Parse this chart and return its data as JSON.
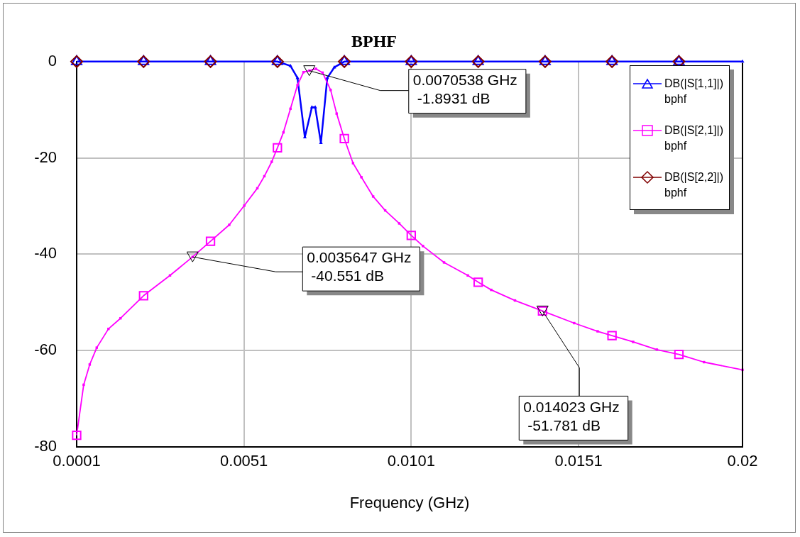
{
  "chart_data": {
    "type": "line",
    "title": "BPHF",
    "xlabel": "Frequency (GHz)",
    "xlim": [
      0.0001,
      0.02
    ],
    "xticks": [
      0.0001,
      0.0051,
      0.0101,
      0.0151,
      0.02
    ],
    "ylim": [
      -80,
      0
    ],
    "yticks": [
      -80,
      -60,
      -40,
      -20,
      0
    ],
    "grid": true,
    "legend": "top right",
    "series": [
      {
        "name": "DB(|S[2,2]|)\nbphf",
        "type": "scatter",
        "color": "#800000",
        "marker": "diamond",
        "x": [
          0.0001,
          0.0021,
          0.0041,
          0.0061,
          0.0081,
          0.0101,
          0.0121,
          0.0141,
          0.0161,
          0.0181
        ],
        "values": [
          0,
          0,
          0,
          0,
          0,
          0,
          0,
          0,
          0,
          0
        ]
      },
      {
        "name": "DB(|S[2,1]|)\nbphf",
        "color": "#ff00ff",
        "marker": "square",
        "x": [
          0.0001,
          0.00031,
          0.00049,
          0.0007,
          0.00105,
          0.00141,
          0.0021,
          0.00289,
          0.0035647,
          0.0041,
          0.00466,
          0.00511,
          0.0055,
          0.00571,
          0.00593,
          0.0061,
          0.00628,
          0.00649,
          0.0067,
          0.00688,
          0.0070538,
          0.00725,
          0.00745,
          0.00769,
          0.00787,
          0.0081,
          0.00836,
          0.00861,
          0.00896,
          0.00932,
          0.00974,
          0.0101,
          0.01045,
          0.01108,
          0.01179,
          0.0121,
          0.01249,
          0.0132,
          0.014023,
          0.01497,
          0.01567,
          0.0161,
          0.01673,
          0.01744,
          0.0181,
          0.01885,
          0.02
        ],
        "values": [
          -77.6,
          -67.1,
          -62.9,
          -59.4,
          -55.5,
          -53.3,
          -48.6,
          -44.4,
          -40.551,
          -37.3,
          -33.9,
          -29.9,
          -26.3,
          -23.8,
          -20.8,
          -17.9,
          -14.7,
          -9.8,
          -4.9,
          -2.2,
          -1.8931,
          -1.5,
          -2.3,
          -5.9,
          -10.8,
          -16.0,
          -21.1,
          -24.0,
          -28.0,
          -30.9,
          -33.6,
          -36.1,
          -38.3,
          -41.7,
          -44.4,
          -45.8,
          -47.4,
          -49.6,
          -51.781,
          -54.3,
          -56.0,
          -56.9,
          -58.2,
          -59.8,
          -60.8,
          -62.4,
          -64.0
        ]
      },
      {
        "name": "DB(|S[1,1]|)\nbphf",
        "color": "#0000ff",
        "marker": "triangle",
        "x": [
          0.0001,
          0.0021,
          0.0041,
          0.0061,
          0.00649,
          0.0067,
          0.00692,
          0.00713,
          0.00723,
          0.0074,
          0.00759,
          0.0078,
          0.0081,
          0.0101,
          0.0121,
          0.0141,
          0.0161,
          0.0181,
          0.02
        ],
        "values": [
          0,
          0,
          0,
          0,
          -0.9,
          -3.4,
          -15.7,
          -9.5,
          -9.5,
          -16.9,
          -3.4,
          -1.2,
          0,
          0,
          0,
          0,
          0,
          0,
          0
        ]
      }
    ],
    "annotations": [
      {
        "text": "0.0070538 GHz\n-1.8931 dB",
        "x": 0.0070538,
        "y": -1.8931
      },
      {
        "text": "0.0035647 GHz\n-40.551 dB",
        "x": 0.0035647,
        "y": -40.551
      },
      {
        "text": "0.014023 GHz\n-51.781 dB",
        "x": 0.014023,
        "y": -51.781
      }
    ]
  }
}
